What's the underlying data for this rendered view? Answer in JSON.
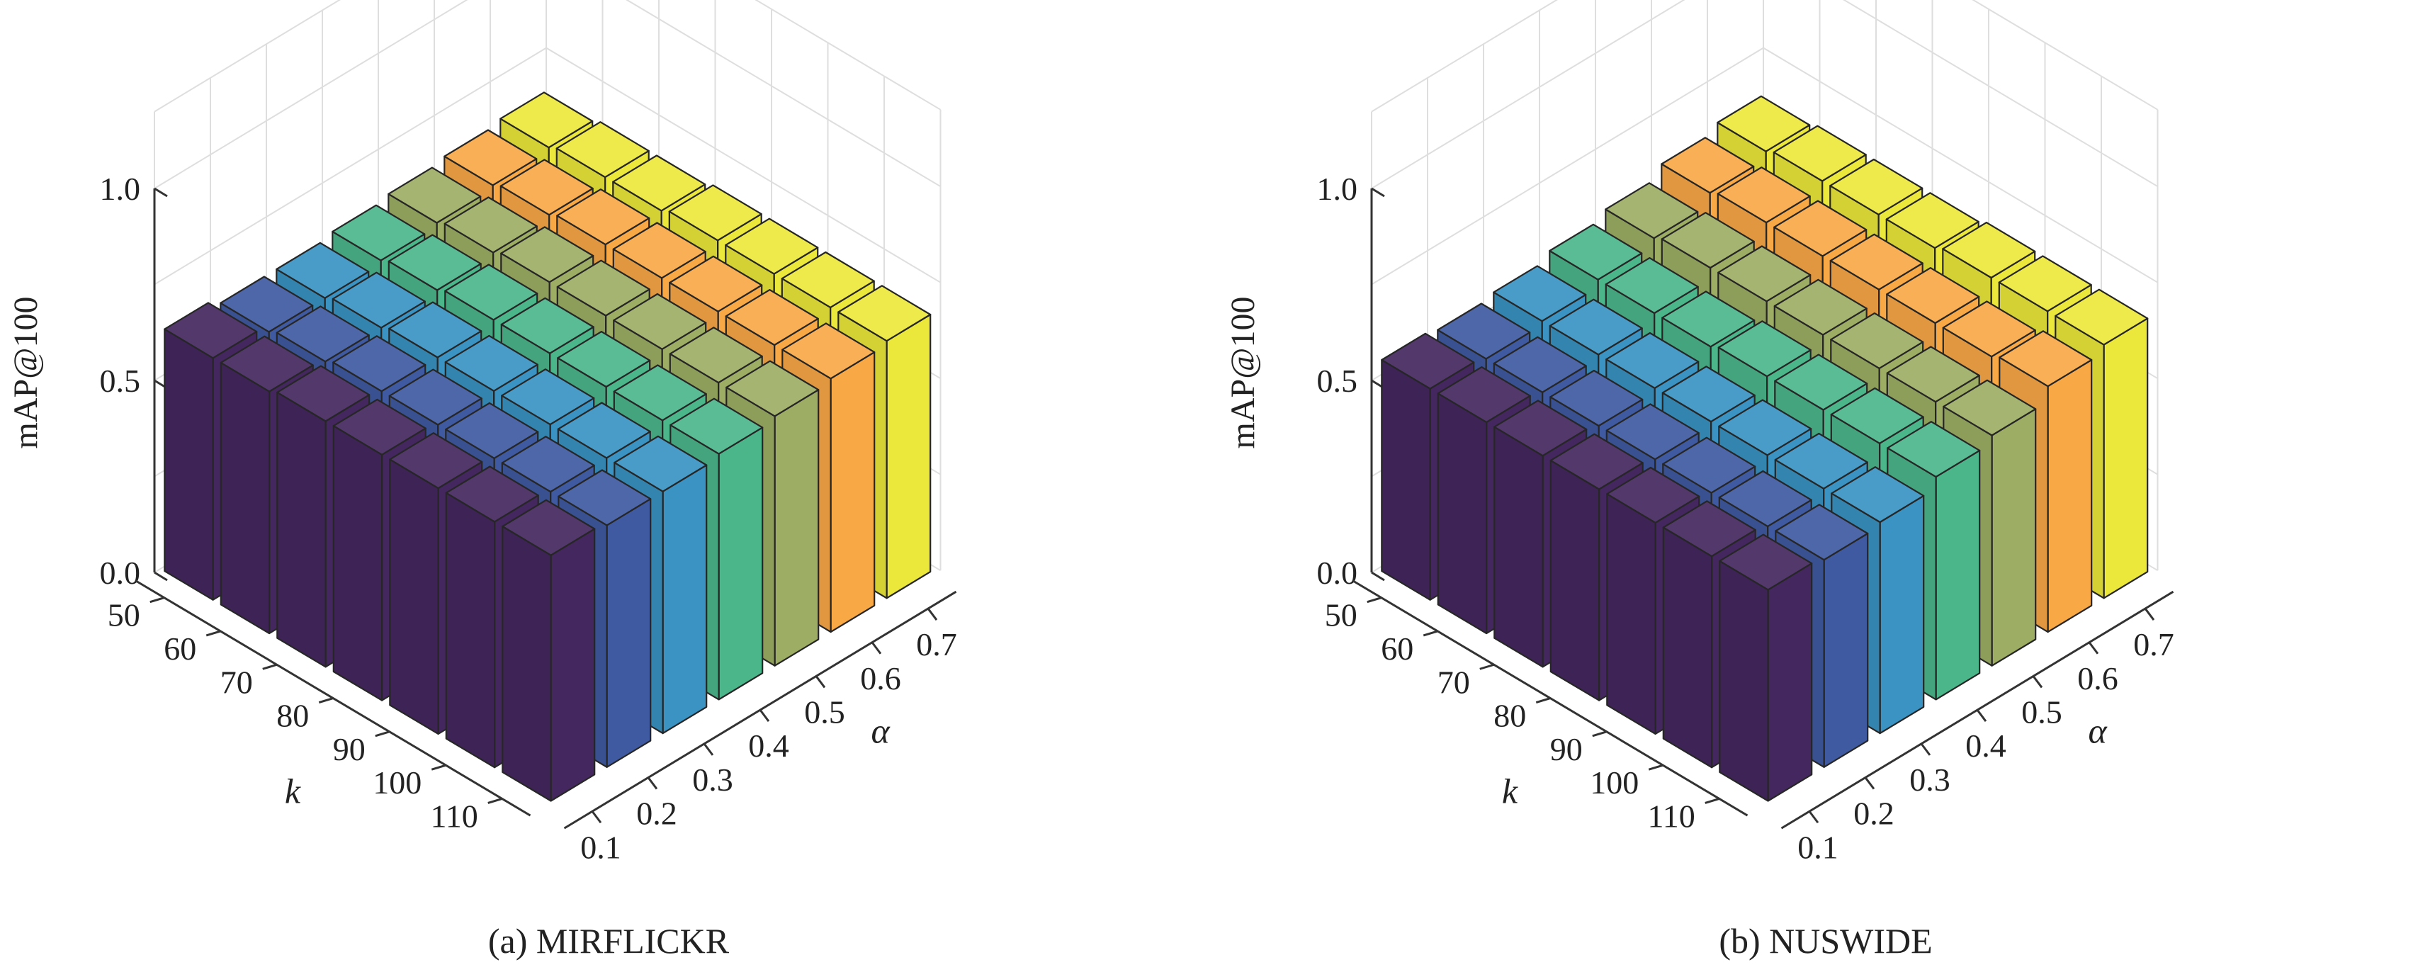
{
  "chart_data": [
    {
      "type": "bar3d",
      "caption": "(a) MIRFLICKR",
      "zlabel": "mAP@100",
      "xlabel": "α",
      "ylabel": "k",
      "x_categories": [
        "0.1",
        "0.2",
        "0.3",
        "0.4",
        "0.5",
        "0.6",
        "0.7"
      ],
      "y_categories": [
        "50",
        "60",
        "70",
        "80",
        "90",
        "100",
        "110"
      ],
      "z_ticks": [
        "0.0",
        "0.5",
        "1.0"
      ],
      "zlim": [
        0,
        1.0
      ],
      "grid": true,
      "series_colors": [
        "#44275f",
        "#3f5aa0",
        "#3a93c3",
        "#4cb68b",
        "#9dae64",
        "#f9a846",
        "#ece83b"
      ],
      "values": [
        [
          0.63,
          0.61,
          0.61,
          0.62,
          0.63,
          0.64,
          0.65
        ],
        [
          0.63,
          0.62,
          0.62,
          0.63,
          0.64,
          0.65,
          0.66
        ],
        [
          0.64,
          0.63,
          0.63,
          0.64,
          0.65,
          0.66,
          0.66
        ],
        [
          0.64,
          0.63,
          0.63,
          0.64,
          0.65,
          0.66,
          0.67
        ],
        [
          0.64,
          0.63,
          0.63,
          0.64,
          0.65,
          0.66,
          0.67
        ],
        [
          0.64,
          0.63,
          0.63,
          0.64,
          0.65,
          0.66,
          0.67
        ],
        [
          0.64,
          0.63,
          0.63,
          0.64,
          0.65,
          0.66,
          0.67
        ]
      ]
    },
    {
      "type": "bar3d",
      "caption": "(b) NUSWIDE",
      "zlabel": "mAP@100",
      "xlabel": "α",
      "ylabel": "k",
      "x_categories": [
        "0.1",
        "0.2",
        "0.3",
        "0.4",
        "0.5",
        "0.6",
        "0.7"
      ],
      "y_categories": [
        "50",
        "60",
        "70",
        "80",
        "90",
        "100",
        "110"
      ],
      "z_ticks": [
        "0.0",
        "0.5",
        "1.0"
      ],
      "zlim": [
        0,
        1.0
      ],
      "grid": true,
      "series_colors": [
        "#44275f",
        "#3f5aa0",
        "#3a93c3",
        "#4cb68b",
        "#9dae64",
        "#f9a846",
        "#ece83b"
      ],
      "values": [
        [
          0.55,
          0.54,
          0.55,
          0.57,
          0.59,
          0.62,
          0.64
        ],
        [
          0.55,
          0.54,
          0.55,
          0.57,
          0.6,
          0.63,
          0.65
        ],
        [
          0.55,
          0.54,
          0.55,
          0.57,
          0.6,
          0.63,
          0.65
        ],
        [
          0.55,
          0.54,
          0.55,
          0.58,
          0.6,
          0.63,
          0.65
        ],
        [
          0.55,
          0.54,
          0.55,
          0.58,
          0.6,
          0.63,
          0.66
        ],
        [
          0.55,
          0.54,
          0.55,
          0.58,
          0.6,
          0.63,
          0.66
        ],
        [
          0.55,
          0.54,
          0.55,
          0.58,
          0.6,
          0.64,
          0.66
        ]
      ]
    }
  ]
}
